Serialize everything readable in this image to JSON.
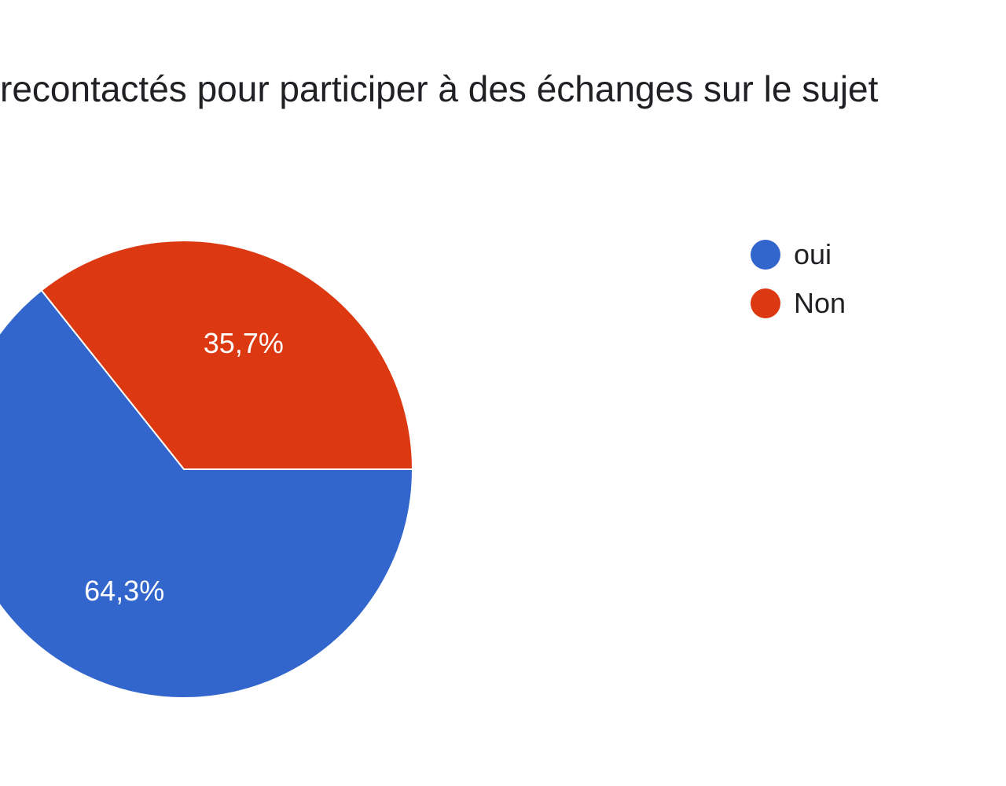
{
  "chart_data": {
    "type": "pie",
    "title": "recontactés pour participer à des échanges sur le sujet",
    "slices": [
      {
        "name": "oui",
        "value": 64.3,
        "label": "64,3%",
        "color": "#3366cc"
      },
      {
        "name": "Non",
        "value": 35.7,
        "label": "35,7%",
        "color": "#dc3912"
      }
    ],
    "legend": {
      "position": "right",
      "items": [
        {
          "label": "oui",
          "color": "#3366cc"
        },
        {
          "label": "Non",
          "color": "#dc3912"
        }
      ]
    }
  }
}
